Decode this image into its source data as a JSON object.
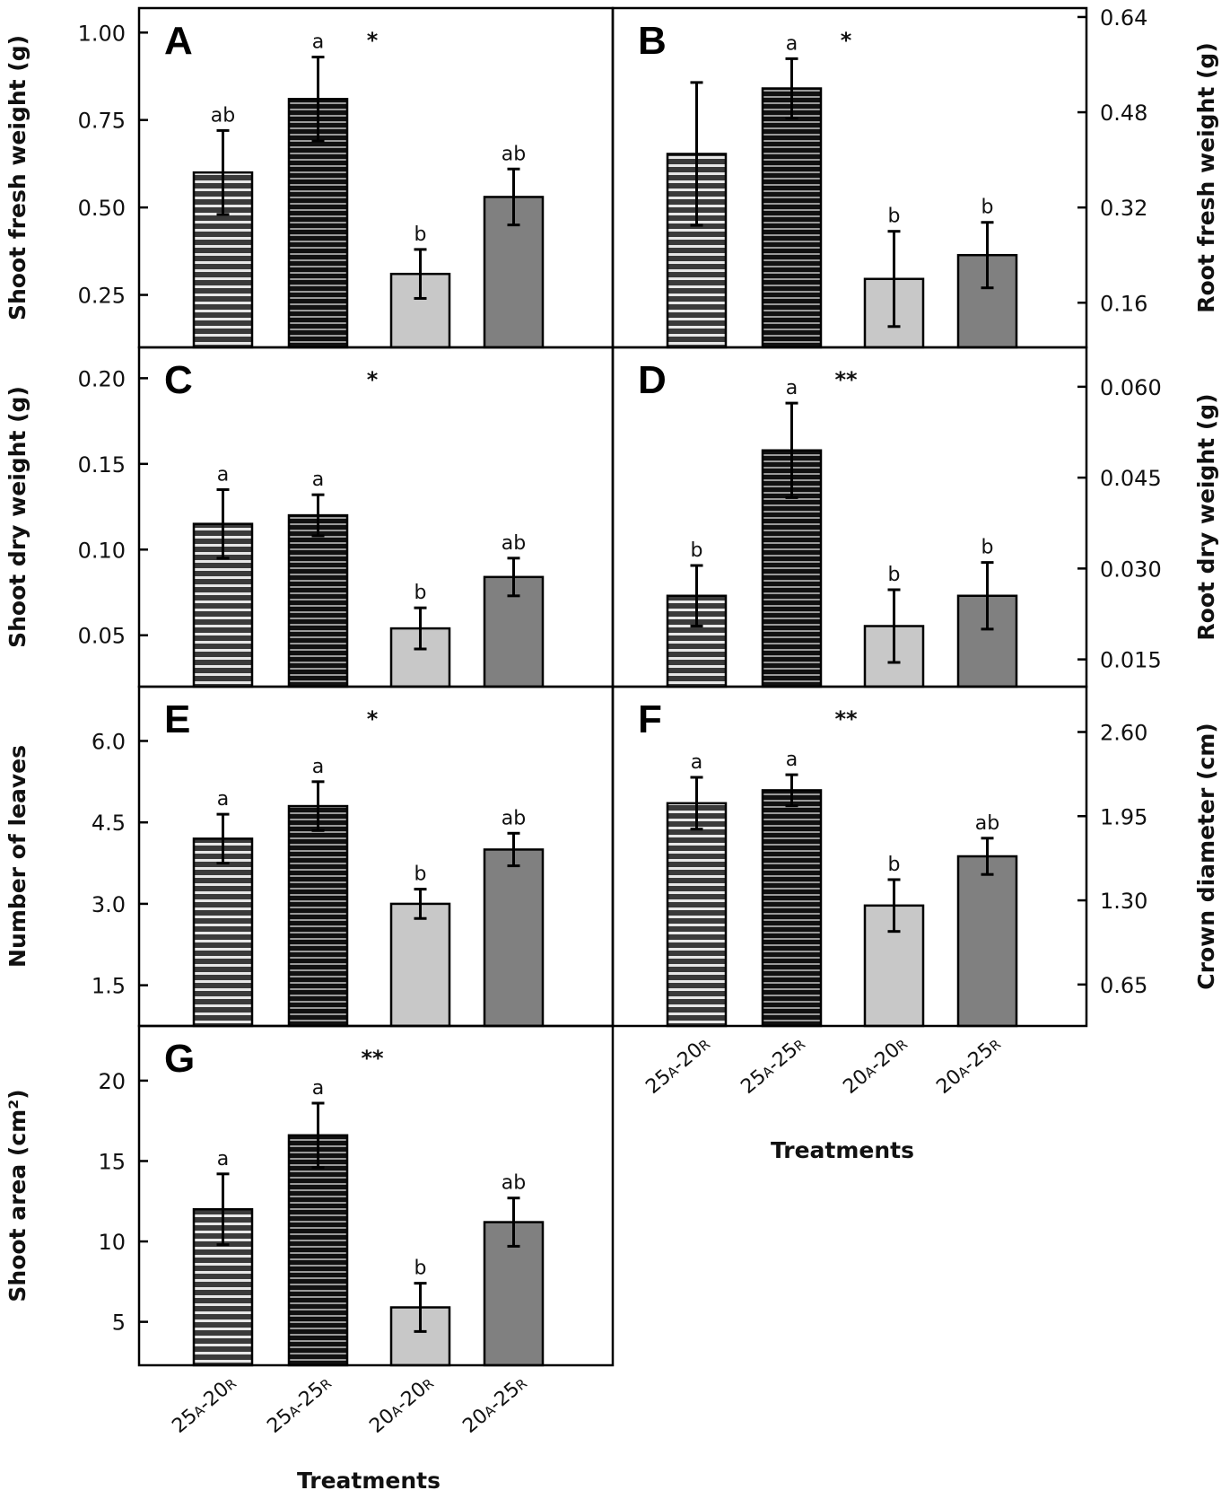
{
  "categories": [
    {
      "main1": "25",
      "sub1": "A",
      "main2": "-20",
      "sub2": "R"
    },
    {
      "main1": "25",
      "sub1": "A",
      "main2": "-25",
      "sub2": "R"
    },
    {
      "main1": "20",
      "sub1": "A",
      "main2": "-20",
      "sub2": "R"
    },
    {
      "main1": "20",
      "sub1": "A",
      "main2": "-25",
      "sub2": "R"
    }
  ],
  "xlabel": "Treatments",
  "colors": {
    "stripe_light": "#3a3a3a",
    "stripe_dark": "#111111",
    "solid_light": "#c8c8c8",
    "solid_dark": "#808080",
    "stripe_line": "#e6e6e6",
    "frame": "#000000"
  },
  "chart_data": [
    {
      "panel": "A",
      "type": "bar",
      "ylabel": "Shoot fresh weight (g)",
      "axis_side": "left",
      "ylim": [
        0.1,
        1.07
      ],
      "yticks": [
        "0.25",
        "0.50",
        "0.75",
        "1.00"
      ],
      "values": [
        0.6,
        0.81,
        0.31,
        0.53
      ],
      "errors": [
        0.12,
        0.12,
        0.07,
        0.08
      ],
      "letters": [
        "ab",
        "a",
        "b",
        "ab"
      ],
      "significance": "*"
    },
    {
      "panel": "B",
      "type": "bar",
      "ylabel": "Root fresh weight (g)",
      "axis_side": "right",
      "ylim": [
        0.085,
        0.655
      ],
      "yticks": [
        "0.16",
        "0.32",
        "0.48",
        "0.64"
      ],
      "values": [
        0.41,
        0.52,
        0.2,
        0.24
      ],
      "errors": [
        0.12,
        0.05,
        0.08,
        0.055
      ],
      "letters": [
        "",
        "a",
        "b",
        "b"
      ],
      "significance": "*"
    },
    {
      "panel": "C",
      "type": "bar",
      "ylabel": "Shoot dry weight (g)",
      "axis_side": "left",
      "ylim": [
        0.02,
        0.218
      ],
      "yticks": [
        "0.05",
        "0.10",
        "0.15",
        "0.20"
      ],
      "values": [
        0.115,
        0.12,
        0.054,
        0.084
      ],
      "errors": [
        0.02,
        0.012,
        0.012,
        0.011
      ],
      "letters": [
        "a",
        "a",
        "b",
        "ab"
      ],
      "significance": "*"
    },
    {
      "panel": "D",
      "type": "bar",
      "ylabel": "Root dry weight (g)",
      "axis_side": "right",
      "ylim": [
        0.0105,
        0.0665
      ],
      "yticks": [
        "0.015",
        "0.030",
        "0.045",
        "0.060"
      ],
      "values": [
        0.0255,
        0.0495,
        0.0205,
        0.0255
      ],
      "errors": [
        0.005,
        0.0078,
        0.006,
        0.0055
      ],
      "letters": [
        "b",
        "a",
        "b",
        "b"
      ],
      "significance": "**"
    },
    {
      "panel": "E",
      "type": "bar",
      "ylabel": "Number of leaves",
      "axis_side": "left",
      "ylim": [
        0.75,
        7.0
      ],
      "yticks": [
        "1.5",
        "3.0",
        "4.5",
        "6.0"
      ],
      "values": [
        4.2,
        4.8,
        3.0,
        4.0
      ],
      "errors": [
        0.45,
        0.45,
        0.27,
        0.3
      ],
      "letters": [
        "a",
        "a",
        "b",
        "ab"
      ],
      "significance": "*"
    },
    {
      "panel": "F",
      "type": "bar",
      "ylabel": "Crown diameter (cm)",
      "axis_side": "right",
      "ylim": [
        0.33,
        2.95
      ],
      "yticks": [
        "0.65",
        "1.30",
        "1.95",
        "2.60"
      ],
      "values": [
        2.05,
        2.15,
        1.26,
        1.64
      ],
      "errors": [
        0.2,
        0.12,
        0.2,
        0.14
      ],
      "letters": [
        "a",
        "a",
        "b",
        "ab"
      ],
      "significance": "**"
    },
    {
      "panel": "G",
      "type": "bar",
      "ylabel": "Shoot area (cm²)",
      "axis_side": "left",
      "ylim": [
        2.3,
        23.4
      ],
      "yticks": [
        "5",
        "10",
        "15",
        "20"
      ],
      "values": [
        12.0,
        16.6,
        5.9,
        11.2
      ],
      "errors": [
        2.2,
        2.0,
        1.5,
        1.5
      ],
      "letters": [
        "a",
        "a",
        "b",
        "ab"
      ],
      "significance": "**"
    }
  ]
}
